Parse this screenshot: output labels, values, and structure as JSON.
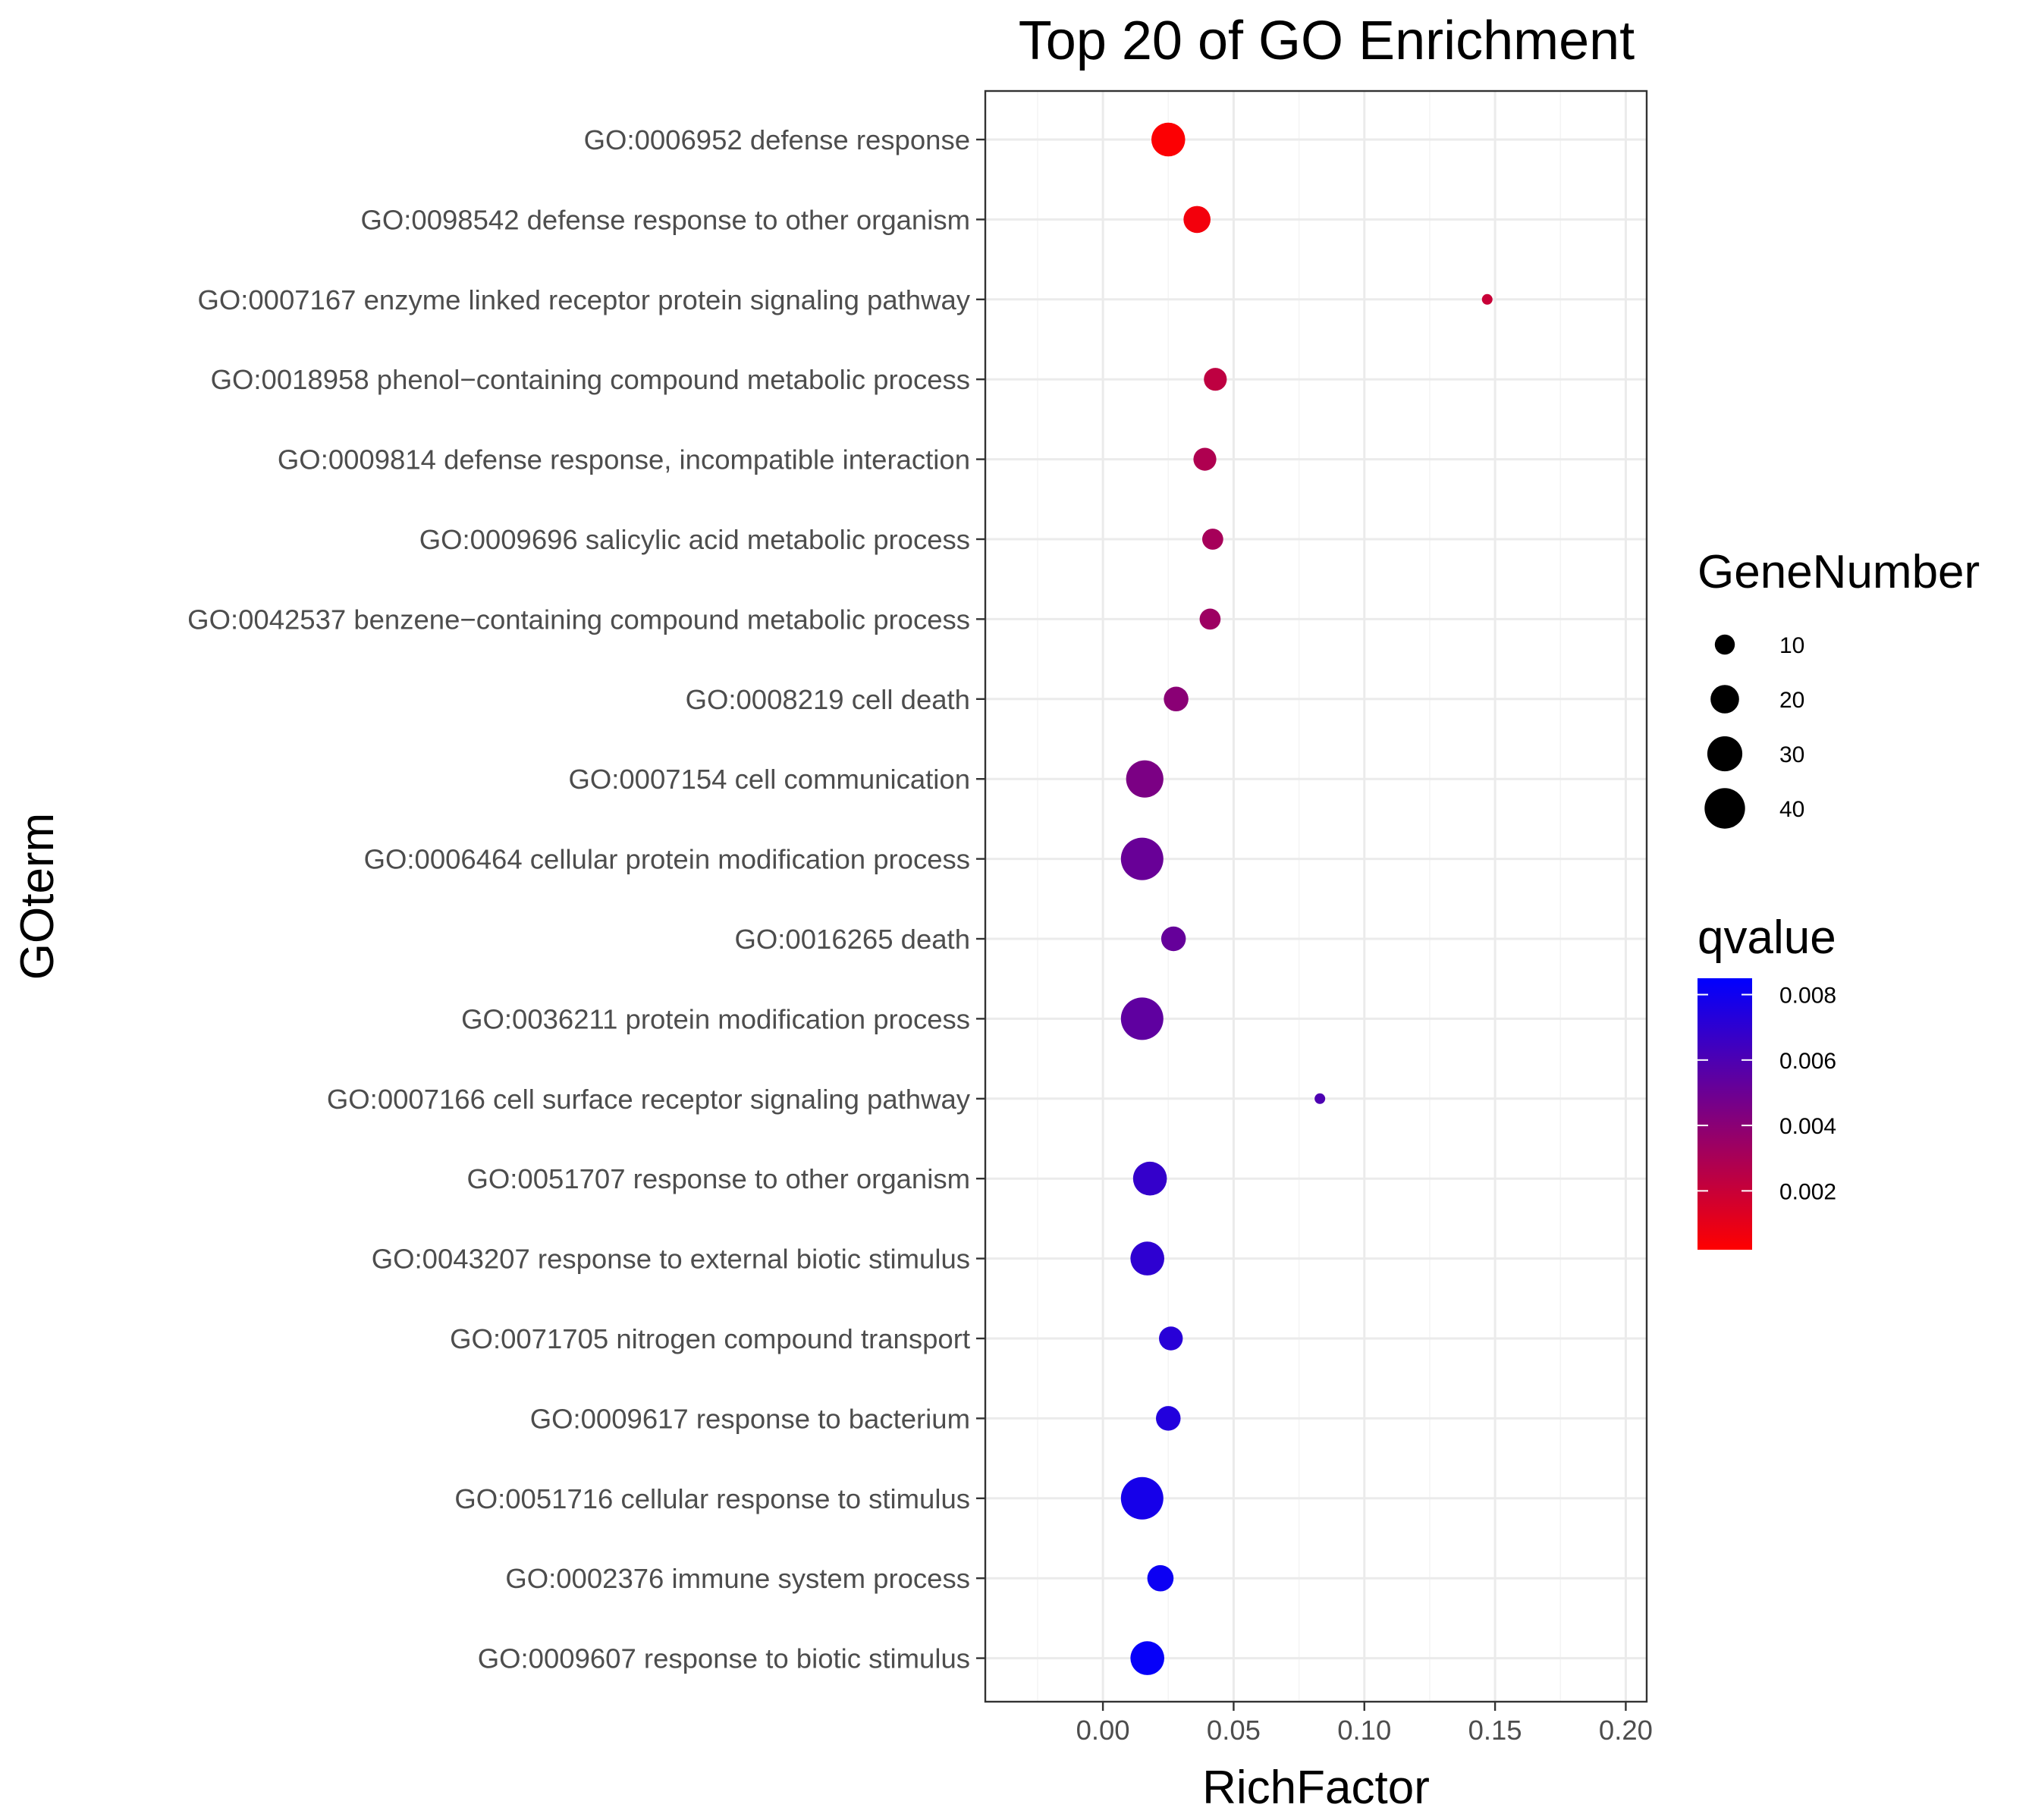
{
  "chart_data": {
    "type": "scatter",
    "title": "Top 20 of GO Enrichment",
    "xlabel": "RichFactor",
    "ylabel": "GOterm",
    "xlim": [
      -0.045,
      0.208
    ],
    "x_ticks": [
      0.0,
      0.05,
      0.1,
      0.15,
      0.2
    ],
    "x_tick_labels": [
      "0.00",
      "0.05",
      "0.10",
      "0.15",
      "0.20"
    ],
    "grid": true,
    "terms": [
      "GO:0006952 defense response",
      "GO:0098542 defense response to other organism",
      "GO:0007167 enzyme linked receptor protein signaling pathway",
      "GO:0018958 phenol−containing compound metabolic process",
      "GO:0009814 defense response, incompatible interaction",
      "GO:0009696 salicylic acid metabolic process",
      "GO:0042537 benzene−containing compound metabolic process",
      "GO:0008219 cell death",
      "GO:0007154 cell communication",
      "GO:0006464 cellular protein modification process",
      "GO:0016265 death",
      "GO:0036211 protein modification process",
      "GO:0007166 cell surface receptor signaling pathway",
      "GO:0051707 response to other organism",
      "GO:0043207 response to external biotic stimulus",
      "GO:0071705 nitrogen compound transport",
      "GO:0009617 response to bacterium",
      "GO:0051716 cellular response to stimulus",
      "GO:0002376 immune system process",
      "GO:0009607 response to biotic stimulus"
    ],
    "points": [
      {
        "term": "GO:0006952 defense response",
        "rich_factor": 0.025,
        "gene_number": 28,
        "qvalue": 0.0003
      },
      {
        "term": "GO:0098542 defense response to other organism",
        "rich_factor": 0.036,
        "gene_number": 18,
        "qvalue": 0.0006
      },
      {
        "term": "GO:0007167 enzyme linked receptor protein signaling pathway",
        "rich_factor": 0.147,
        "gene_number": 3,
        "qvalue": 0.002
      },
      {
        "term": "GO:0018958 phenol−containing compound metabolic process",
        "rich_factor": 0.043,
        "gene_number": 13,
        "qvalue": 0.0023
      },
      {
        "term": "GO:0009814 defense response, incompatible interaction",
        "rich_factor": 0.039,
        "gene_number": 13,
        "qvalue": 0.0028
      },
      {
        "term": "GO:0009696 salicylic acid metabolic process",
        "rich_factor": 0.042,
        "gene_number": 11,
        "qvalue": 0.0031
      },
      {
        "term": "GO:0042537 benzene−containing compound metabolic process",
        "rich_factor": 0.041,
        "gene_number": 11,
        "qvalue": 0.0034
      },
      {
        "term": "GO:0008219 cell death",
        "rich_factor": 0.028,
        "gene_number": 15,
        "qvalue": 0.004
      },
      {
        "term": "GO:0007154 cell communication",
        "rich_factor": 0.016,
        "gene_number": 34,
        "qvalue": 0.0045
      },
      {
        "term": "GO:0006464 cellular protein modification process",
        "rich_factor": 0.015,
        "gene_number": 44,
        "qvalue": 0.0051
      },
      {
        "term": "GO:0016265 death",
        "rich_factor": 0.027,
        "gene_number": 15,
        "qvalue": 0.0052
      },
      {
        "term": "GO:0036211 protein modification process",
        "rich_factor": 0.015,
        "gene_number": 44,
        "qvalue": 0.0054
      },
      {
        "term": "GO:0007166 cell surface receptor signaling pathway",
        "rich_factor": 0.083,
        "gene_number": 3,
        "qvalue": 0.006
      },
      {
        "term": "GO:0051707 response to other organism",
        "rich_factor": 0.018,
        "gene_number": 28,
        "qvalue": 0.0068
      },
      {
        "term": "GO:0043207 response to external biotic stimulus",
        "rich_factor": 0.017,
        "gene_number": 28,
        "qvalue": 0.007
      },
      {
        "term": "GO:0071705 nitrogen compound transport",
        "rich_factor": 0.026,
        "gene_number": 14,
        "qvalue": 0.0072
      },
      {
        "term": "GO:0009617 response to bacterium",
        "rich_factor": 0.025,
        "gene_number": 15,
        "qvalue": 0.0074
      },
      {
        "term": "GO:0051716 cellular response to stimulus",
        "rich_factor": 0.015,
        "gene_number": 44,
        "qvalue": 0.0078
      },
      {
        "term": "GO:0002376 immune system process",
        "rich_factor": 0.022,
        "gene_number": 17,
        "qvalue": 0.0081
      },
      {
        "term": "GO:0009607 response to biotic stimulus",
        "rich_factor": 0.017,
        "gene_number": 28,
        "qvalue": 0.0083
      }
    ],
    "legend_size": {
      "title": "GeneNumber",
      "breaks": [
        10,
        20,
        30,
        40
      ],
      "labels": [
        "10",
        "20",
        "30",
        "40"
      ]
    },
    "legend_color": {
      "title": "qvalue",
      "low_color": "#FF0000",
      "high_color": "#0000FF",
      "range": [
        0.0002,
        0.0085
      ],
      "breaks": [
        0.002,
        0.004,
        0.006,
        0.008
      ],
      "labels": [
        "0.002",
        "0.004",
        "0.006",
        "0.008"
      ]
    },
    "colors": {
      "panel_border": "#333333",
      "grid_major": "#EBEBEB",
      "grid_minor": "#F4F4F4"
    }
  }
}
